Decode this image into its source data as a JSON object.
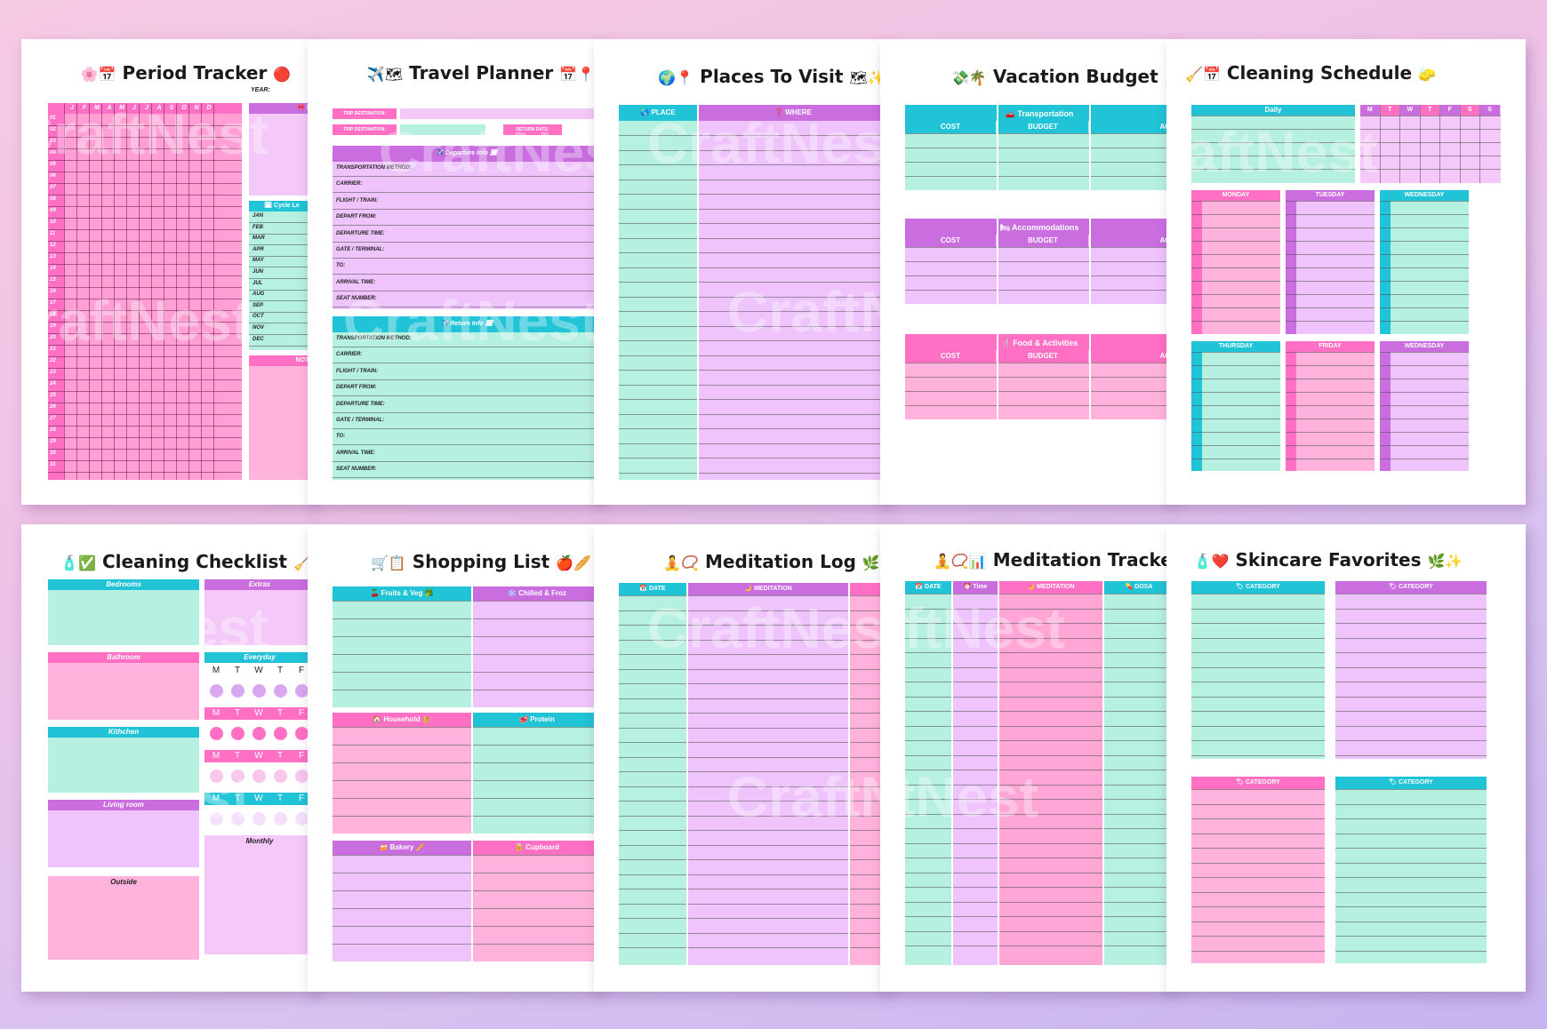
{
  "colors": {
    "pink": "#ff6fc4",
    "light_pink": "#ffb3dc",
    "teal": "#21c3d6",
    "mint": "#b6f0e0",
    "lavender": "#efc3fb",
    "purple": "#c96ddf"
  },
  "watermark": "CraftNest",
  "period": {
    "title": "Period Tracker",
    "icon_left": "🌸📅",
    "icon_right": "🔴",
    "year_label": "YEAR:",
    "month_letters": [
      "J",
      "F",
      "M",
      "A",
      "M",
      "J",
      "J",
      "A",
      "S",
      "O",
      "N",
      "D"
    ],
    "days": [
      "01",
      "02",
      "03",
      "04",
      "05",
      "06",
      "07",
      "08",
      "09",
      "10",
      "11",
      "12",
      "13",
      "14",
      "15",
      "16",
      "17",
      "18",
      "19",
      "20",
      "21",
      "22",
      "23",
      "24",
      "25",
      "26",
      "27",
      "28",
      "29",
      "30",
      "31"
    ],
    "side_header": "🎀 Ki",
    "cycle_header": "🗓 Cycle Le",
    "months": [
      "JAN",
      "FEB",
      "MAR",
      "APR",
      "MAY",
      "JUN",
      "JUL",
      "AUG",
      "SEP",
      "OCT",
      "NOV",
      "DEC"
    ],
    "notes_label": "NOTE"
  },
  "travel": {
    "title": "Travel Planner",
    "icon_left": "✈️🗺",
    "icon_right": "📅📍",
    "trip1": "TRIP DESTINATION:",
    "trip2": "TRIP DESTINATION:",
    "return_date": "RETURN DATE:",
    "departure_header": "✈️ Departure Info 🗓",
    "return_header": "✈️ Return Info 🗓",
    "fields": [
      "TRANSPORTATION METHOD:",
      "CARRIER:",
      "FLIGHT / TRAIN:",
      "DEPART FROM:",
      "DEPARTURE TIME:",
      "GATE / TERMINAL:",
      "TO:",
      "ARRIVAL TIME:",
      "SEAT NUMBER:"
    ]
  },
  "places": {
    "title": "Places To Visit",
    "icon_left": "🌍📍",
    "icon_right": "🗺✨",
    "col_place": "🌎 PLACE",
    "col_where": "❓ WHERE"
  },
  "vacation": {
    "title": "Vacation Budget",
    "icon_left": "💸🌴",
    "icon_right": "💰",
    "sections": [
      {
        "title": "🚗 Transportation",
        "cost": "COST",
        "budget": "BUDGET",
        "ac": "AC"
      },
      {
        "title": "🛏 Accommodations",
        "cost": "COST",
        "budget": "BUDGET",
        "ac": "AC"
      },
      {
        "title": "🍴 Food & Activities",
        "cost": "COST",
        "budget": "BUDGET",
        "ac": "AC"
      }
    ]
  },
  "cleaning_schedule": {
    "title": "Cleaning Schedule",
    "icon_left": "🧹📅",
    "icon_right": "🧽",
    "daily": "Daily",
    "week_letters": [
      "M",
      "T",
      "W",
      "T",
      "F",
      "S",
      "S"
    ],
    "days": [
      "MONDAY",
      "TUESDAY",
      "WEDNESDAY",
      "THURSDAY",
      "FRIDAY",
      "WEDNESDAY"
    ]
  },
  "checklist": {
    "title": "Cleaning Checklist",
    "icon_left": "🧴✅",
    "icon_right": "🧹",
    "rooms": [
      "Bedrooms",
      "Bathroom",
      "Kithchen",
      "Living room",
      "Outside"
    ],
    "extras": "Extras",
    "everyday": "Everyday",
    "monthly": "Monthly",
    "week_letters": [
      "M",
      "T",
      "W",
      "T",
      "F"
    ]
  },
  "shopping": {
    "title": "Shopping List",
    "icon_left": "🛒📋",
    "icon_right": "🍎🥖",
    "sections": [
      "🍒 Fruits & Veg 🥦",
      "❄️ Chilled & Froz",
      "🏠 Household 🧺",
      "🥩 Protein",
      "🍰 Bakery 🥖",
      "🥫 Cupboard"
    ]
  },
  "meditation_log": {
    "title": "Meditation Log",
    "icon_left": "🧘📿",
    "icon_right": "🌿",
    "col_date": "📅 DATE",
    "col_meditation": "🌙 MEDITATION"
  },
  "meditation_tracker": {
    "title": "Meditation Tracker",
    "icon_left": "🧘📿📊",
    "icon_right": "🌿",
    "col_date": "📅 DATE",
    "col_time": "⏰ Time",
    "col_meditation": "🌙 MEDITATION",
    "col_dosage": "💊 DOSA"
  },
  "skincare": {
    "title": "Skincare Favorites",
    "icon_left": "🧴❤️",
    "icon_right": "🌿✨",
    "category": "🏷 CATEGORY"
  }
}
